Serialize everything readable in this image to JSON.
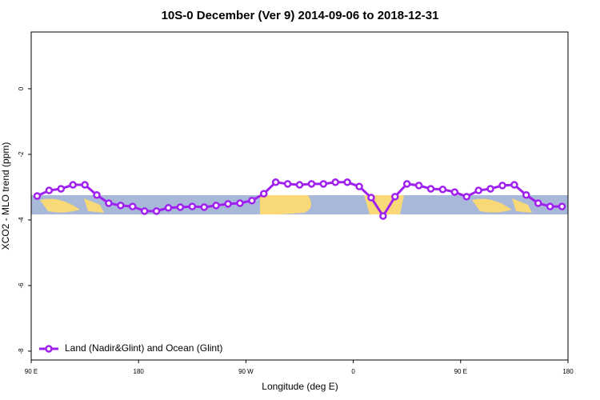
{
  "chart_data": {
    "type": "line",
    "title": "10S-0 December (Ver 9)   2014-09-06 to 2018-12-31",
    "x_label": "Longitude (deg E)",
    "y_label": "XCO2 - MLO trend (ppm)",
    "x": [
      95,
      105,
      115,
      125,
      135,
      145,
      155,
      165,
      175,
      185,
      195,
      205,
      215,
      225,
      235,
      245,
      255,
      265,
      275,
      285,
      295,
      305,
      315,
      325,
      335,
      345,
      355,
      365,
      375,
      385,
      395,
      405,
      415,
      425,
      435,
      445,
      455,
      465,
      475,
      485,
      495,
      505,
      515,
      525,
      535
    ],
    "series": [
      {
        "name": "Land (Nadir&Glint) and Ocean (Glint)",
        "color": "#a020f0",
        "values": [
          -3.27,
          -3.1,
          -3.05,
          -2.93,
          -2.93,
          -3.24,
          -3.49,
          -3.56,
          -3.59,
          -3.73,
          -3.73,
          -3.63,
          -3.61,
          -3.59,
          -3.61,
          -3.56,
          -3.51,
          -3.49,
          -3.41,
          -3.2,
          -2.85,
          -2.9,
          -2.93,
          -2.9,
          -2.9,
          -2.85,
          -2.85,
          -2.98,
          -3.32,
          -3.88,
          -3.29,
          -2.9,
          -2.95,
          -3.05,
          -3.07,
          -3.15,
          -3.29,
          -3.1,
          -3.05,
          -2.95,
          -2.93,
          -3.24,
          -3.49,
          -3.59,
          -3.59
        ]
      }
    ],
    "xlim": [
      90,
      540
    ],
    "xticks": [
      {
        "value": 90,
        "label": "90 E"
      },
      180,
      {
        "value": 270,
        "label": "90 W"
      },
      {
        "value": 360,
        "label": "0"
      },
      {
        "value": 450,
        "label": "90 E"
      },
      {
        "value": 540,
        "label": "180"
      }
    ],
    "ylim": [
      -8.27,
      1.73
    ],
    "yticks": [
      0,
      -2,
      -4,
      -6,
      -8
    ],
    "legend": "bottom-left"
  }
}
